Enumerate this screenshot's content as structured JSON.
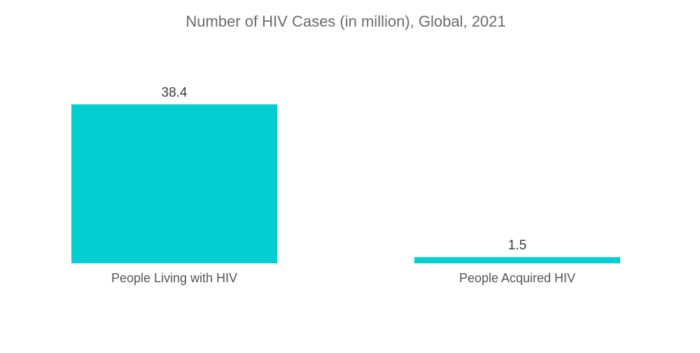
{
  "chart_data": {
    "type": "bar",
    "title": "Number of HIV Cases (in million), Global, 2021",
    "categories": [
      "People Living with HIV",
      "People Acquired HIV"
    ],
    "values": [
      38.4,
      1.5
    ],
    "xlabel": "",
    "ylabel": "",
    "ylim": [
      0,
      38.4
    ],
    "grid": false,
    "legend": "none",
    "bar_color": "#00CED1"
  }
}
